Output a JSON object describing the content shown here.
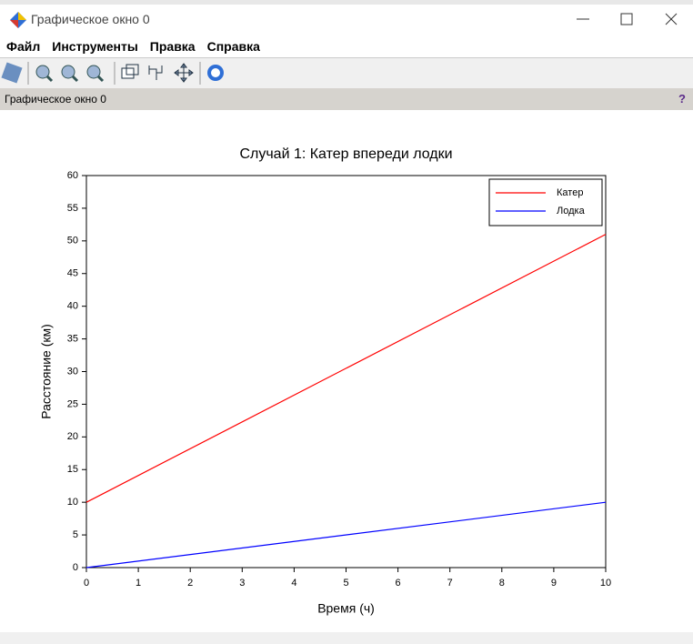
{
  "window": {
    "title": "Графическое окно 0",
    "menu": [
      "Файл",
      "Инструменты",
      "Правка",
      "Справка"
    ],
    "panel_title": "Графическое окно 0",
    "panel_help": "?"
  },
  "chart_data": {
    "type": "line",
    "title": "Случай 1: Катер впереди лодки",
    "x_label": "Время (ч)",
    "y_label": "Расстояние (км)",
    "x": [
      0,
      10
    ],
    "series": [
      {
        "name": "Катер",
        "color": "#ff0000",
        "values": [
          10,
          51
        ]
      },
      {
        "name": "Лодка",
        "color": "#0000ff",
        "values": [
          0,
          10
        ]
      }
    ],
    "xlim": [
      0,
      10
    ],
    "xticks": [
      0,
      1,
      2,
      3,
      4,
      5,
      6,
      7,
      8,
      9,
      10
    ],
    "ylim": [
      0,
      60
    ],
    "yticks": [
      0,
      5,
      10,
      15,
      20,
      25,
      30,
      35,
      40,
      45,
      50,
      55,
      60
    ],
    "legend": "upper right"
  }
}
